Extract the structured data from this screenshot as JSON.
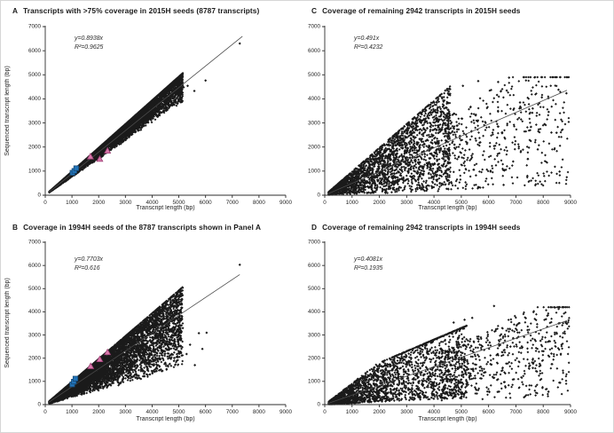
{
  "figure": {
    "background": "#ffffff",
    "axis_color": "#2e2e2e",
    "point_color": "#1a1a1a",
    "line_color": "#4a4a4a",
    "blue_marker": {
      "fill": "#2273b8",
      "stroke": "#174a75",
      "shape": "square"
    },
    "pink_marker": {
      "fill": "#d879ab",
      "stroke": "#9c3f74",
      "shape": "triangle"
    }
  },
  "chart_data": [
    {
      "type": "scatter",
      "panel_letter": "A",
      "title": "Transcripts with >75% coverage in 2015H seeds (8787 transcripts)",
      "equation": "y=0.8938x",
      "r_squared": "R²=0.9625",
      "slope": 0.8938,
      "n_transcripts": 8787,
      "xlabel": "Transcript length (bp)",
      "ylabel": "Sequenced transcript length (bp)",
      "xlim": [
        0,
        9000
      ],
      "ylim": [
        0,
        7000
      ],
      "x_ticks": [
        0,
        1000,
        2000,
        3000,
        4000,
        5000,
        6000,
        7000,
        8000,
        9000
      ],
      "y_ticks": [
        0,
        1000,
        2000,
        3000,
        4000,
        5000,
        6000,
        7000
      ],
      "grid": false,
      "seed": 11,
      "line_x": [
        140,
        7380
      ],
      "clusters": [
        {
          "n": 8780,
          "x": [
            150,
            5150,
            2.05
          ],
          "r": [
            0.75,
            1.0,
            0.55
          ]
        }
      ],
      "outliers": [
        [
          4650,
          4420
        ],
        [
          4720,
          4500
        ],
        [
          4880,
          3840
        ],
        [
          5020,
          4450
        ],
        [
          5180,
          4480
        ],
        [
          5330,
          4540
        ],
        [
          5580,
          4330
        ],
        [
          6000,
          4760
        ],
        [
          7280,
          6300
        ],
        [
          4550,
          3900
        ],
        [
          4700,
          4100
        ],
        [
          4850,
          4430
        ],
        [
          5100,
          3950
        ]
      ],
      "blue_squares": [
        [
          1020,
          930
        ],
        [
          1090,
          1010
        ],
        [
          1160,
          1120
        ]
      ],
      "pink_triangles": [
        [
          1690,
          1600
        ],
        [
          2040,
          1500
        ],
        [
          2330,
          1840
        ]
      ]
    },
    {
      "type": "scatter",
      "panel_letter": "C",
      "title": "Coverage of remaining 2942 transcripts in 2015H seeds",
      "equation": "y=0.491x",
      "r_squared": "R²=0.4232",
      "slope": 0.491,
      "n_transcripts": 2942,
      "xlabel": "Transcript length (bp)",
      "ylabel": "",
      "xlim": [
        0,
        9000
      ],
      "ylim": [
        0,
        7000
      ],
      "x_ticks": [
        0,
        1000,
        2000,
        3000,
        4000,
        5000,
        6000,
        7000,
        8000,
        9000
      ],
      "y_ticks": [
        0,
        1000,
        2000,
        3000,
        4000,
        5000,
        6000,
        7000
      ],
      "grid": false,
      "seed": 33,
      "line_x": [
        100,
        8870
      ],
      "clusters": [
        {
          "n": 2450,
          "x": [
            140,
            4600,
            1.15
          ],
          "r": [
            0.04,
            1.0,
            0.8
          ]
        },
        {
          "n": 490,
          "x": [
            4400,
            8950,
            1.35
          ],
          "r": [
            0.05,
            0.72,
            1.0
          ],
          "ymax": 4900
        }
      ],
      "outliers": [
        [
          6750,
          4880
        ],
        [
          6350,
          4700
        ],
        [
          5620,
          4740
        ],
        [
          5060,
          4540
        ],
        [
          8560,
          4380
        ],
        [
          8850,
          4230
        ],
        [
          7950,
          4060
        ],
        [
          8200,
          3460
        ],
        [
          8600,
          980
        ],
        [
          7420,
          800
        ],
        [
          6550,
          430
        ],
        [
          5650,
          330
        ],
        [
          7150,
          3850
        ],
        [
          7600,
          3420
        ],
        [
          8300,
          2600
        ],
        [
          7800,
          1900
        ],
        [
          6900,
          1400
        ],
        [
          8050,
          2950
        ]
      ]
    },
    {
      "type": "scatter",
      "panel_letter": "B",
      "title": "Coverage in 1994H seeds of the 8787 transcripts shown in Panel A",
      "equation": "y=0.7703x",
      "r_squared": "R²=0.616",
      "slope": 0.7703,
      "n_transcripts": 8787,
      "xlabel": "Transcript length (bp)",
      "ylabel": "Sequenced transcript length (bp)",
      "xlim": [
        0,
        9000
      ],
      "ylim": [
        0,
        7000
      ],
      "x_ticks": [
        0,
        1000,
        2000,
        3000,
        4000,
        5000,
        6000,
        7000,
        8000,
        9000
      ],
      "y_ticks": [
        0,
        1000,
        2000,
        3000,
        4000,
        5000,
        6000,
        7000
      ],
      "grid": false,
      "seed": 22,
      "line_x": [
        140,
        7280
      ],
      "clusters": [
        {
          "n": 8780,
          "x": [
            150,
            5150,
            2.05
          ],
          "r": [
            0.3,
            1.0,
            0.6
          ]
        }
      ],
      "outliers": [
        [
          7280,
          6030
        ],
        [
          4760,
          4340
        ],
        [
          4420,
          3680
        ],
        [
          4620,
          3280
        ],
        [
          5150,
          3300
        ],
        [
          5420,
          2580
        ],
        [
          5750,
          3080
        ],
        [
          6040,
          3100
        ],
        [
          5880,
          2400
        ],
        [
          5290,
          2180
        ],
        [
          4930,
          1900
        ],
        [
          4480,
          2300
        ],
        [
          5600,
          1700
        ]
      ],
      "blue_squares": [
        [
          1010,
          870
        ],
        [
          1070,
          990
        ],
        [
          1130,
          1120
        ]
      ],
      "pink_triangles": [
        [
          1700,
          1650
        ],
        [
          2040,
          1950
        ],
        [
          2330,
          2250
        ]
      ]
    },
    {
      "type": "scatter",
      "panel_letter": "D",
      "title": "Coverage of remaining 2942 transcripts in 1994H seeds",
      "equation": "y=0.4081x",
      "r_squared": "R²=0.1935",
      "slope": 0.4081,
      "n_transcripts": 2942,
      "xlabel": "Transcript length (bp)",
      "ylabel": "",
      "xlim": [
        0,
        9000
      ],
      "ylim": [
        0,
        7000
      ],
      "x_ticks": [
        0,
        1000,
        2000,
        3000,
        4000,
        5000,
        6000,
        7000,
        8000,
        9000
      ],
      "y_ticks": [
        0,
        1000,
        2000,
        3000,
        4000,
        5000,
        6000,
        7000
      ],
      "grid": false,
      "seed": 44,
      "line_x": [
        100,
        8870
      ],
      "clusters": [
        {
          "n": 2300,
          "x": [
            150,
            5200,
            1.5
          ],
          "r": [
            0.06,
            0.92,
            1.15
          ],
          "cap": [
            800,
            0.5
          ]
        },
        {
          "n": 630,
          "x": [
            4200,
            8950,
            1.25
          ],
          "r": [
            0.04,
            0.55,
            0.9
          ],
          "ymax": 4200
        }
      ],
      "outliers": [
        [
          6200,
          4250
        ],
        [
          5400,
          3740
        ],
        [
          4720,
          3540
        ],
        [
          5120,
          3660
        ],
        [
          8100,
          3680
        ],
        [
          8870,
          3480
        ],
        [
          8500,
          3060
        ],
        [
          7300,
          2920
        ],
        [
          8620,
          940
        ],
        [
          7620,
          1580
        ],
        [
          6800,
          2500
        ],
        [
          7900,
          2750
        ],
        [
          8300,
          2200
        ],
        [
          6500,
          3300
        ],
        [
          7100,
          3500
        ]
      ]
    }
  ]
}
